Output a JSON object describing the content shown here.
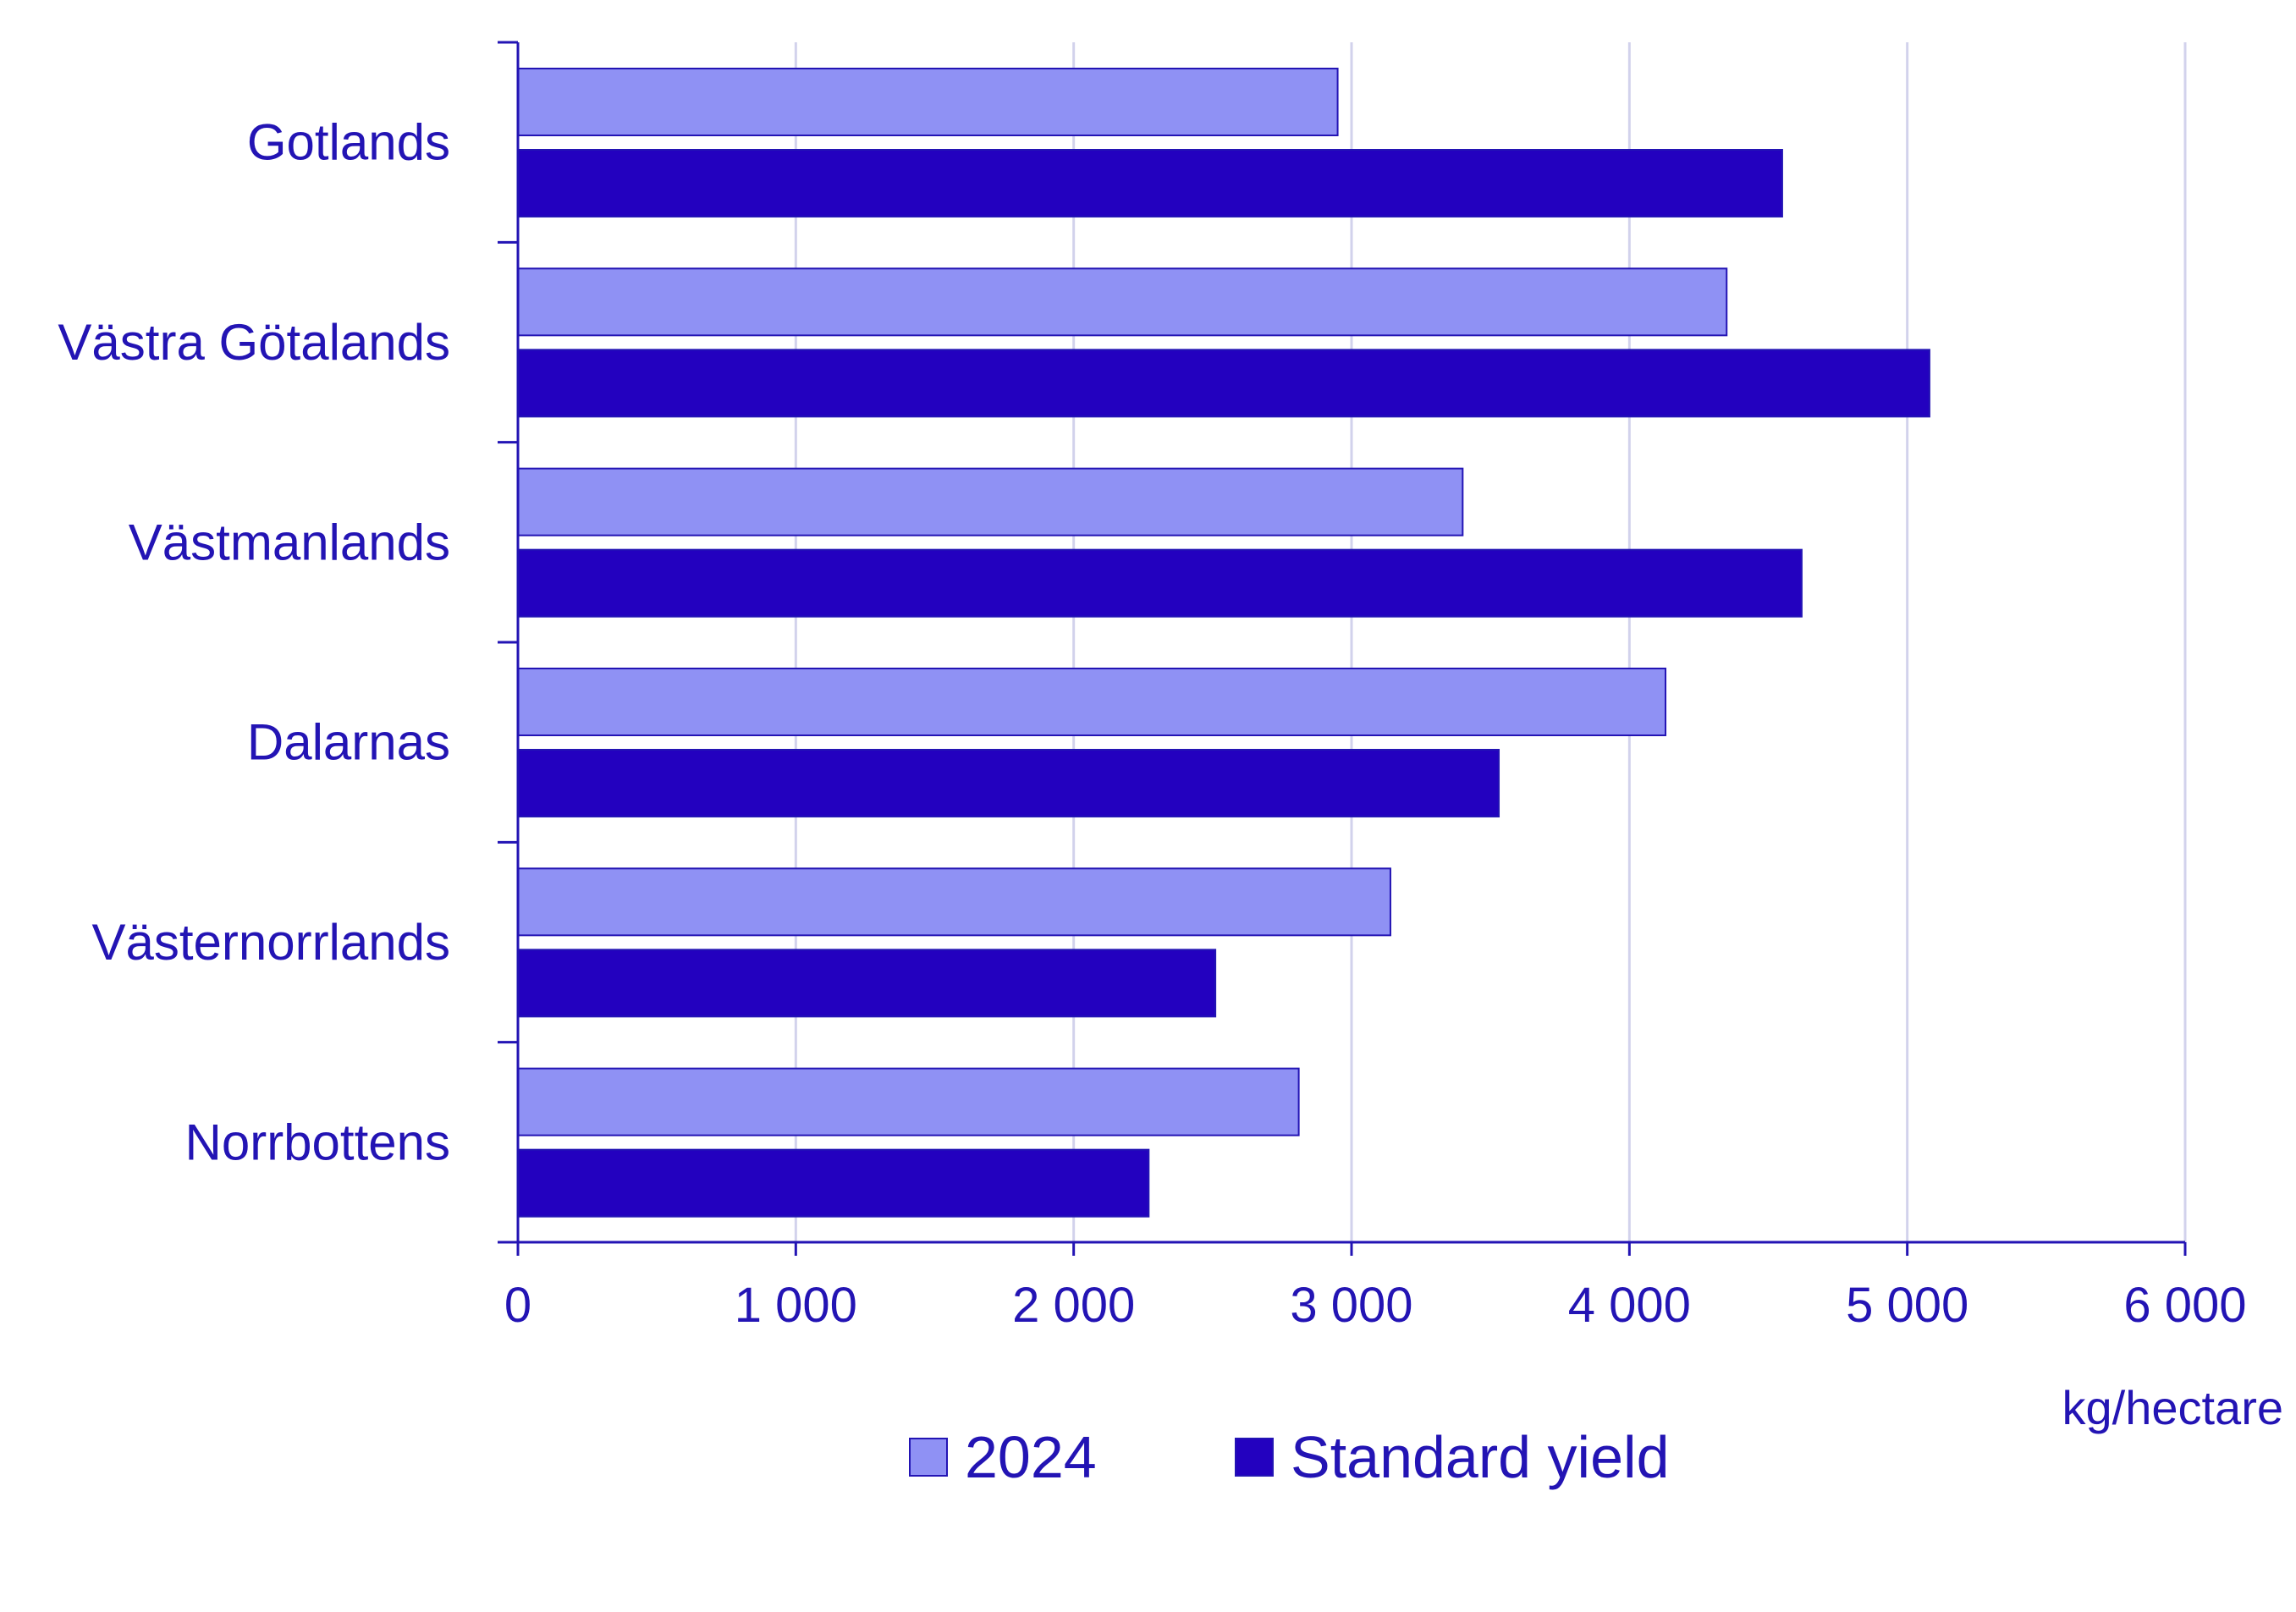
{
  "chart_data": {
    "type": "bar",
    "orientation": "horizontal",
    "categories": [
      "Gotlands",
      "Västra Götalands",
      "Västmanlands",
      "Dalarnas",
      "Västernorrlands",
      "Norrbottens"
    ],
    "series": [
      {
        "name": "2024",
        "values": [
          2950,
          4350,
          3400,
          4130,
          3140,
          2810
        ],
        "color": "#8f91f4"
      },
      {
        "name": "Standard yield",
        "values": [
          4550,
          5080,
          4620,
          3530,
          2510,
          2270
        ],
        "color": "#2301bf"
      }
    ],
    "x_ticks": [
      "0",
      "1 000",
      "2 000",
      "3 000",
      "4 000",
      "5 000",
      "6 000"
    ],
    "x_tick_values": [
      0,
      1000,
      2000,
      3000,
      4000,
      5000,
      6000
    ],
    "xlim": [
      0,
      6000
    ],
    "unit_label": "kg/hectare",
    "grid": "vertical",
    "legend_position": "bottom",
    "title": "",
    "xlabel": "",
    "ylabel": ""
  },
  "colors": {
    "text": "#2314b4",
    "axis": "#2314b4",
    "grid": "#d2d2ec",
    "bar_outline": "#2314b4"
  }
}
